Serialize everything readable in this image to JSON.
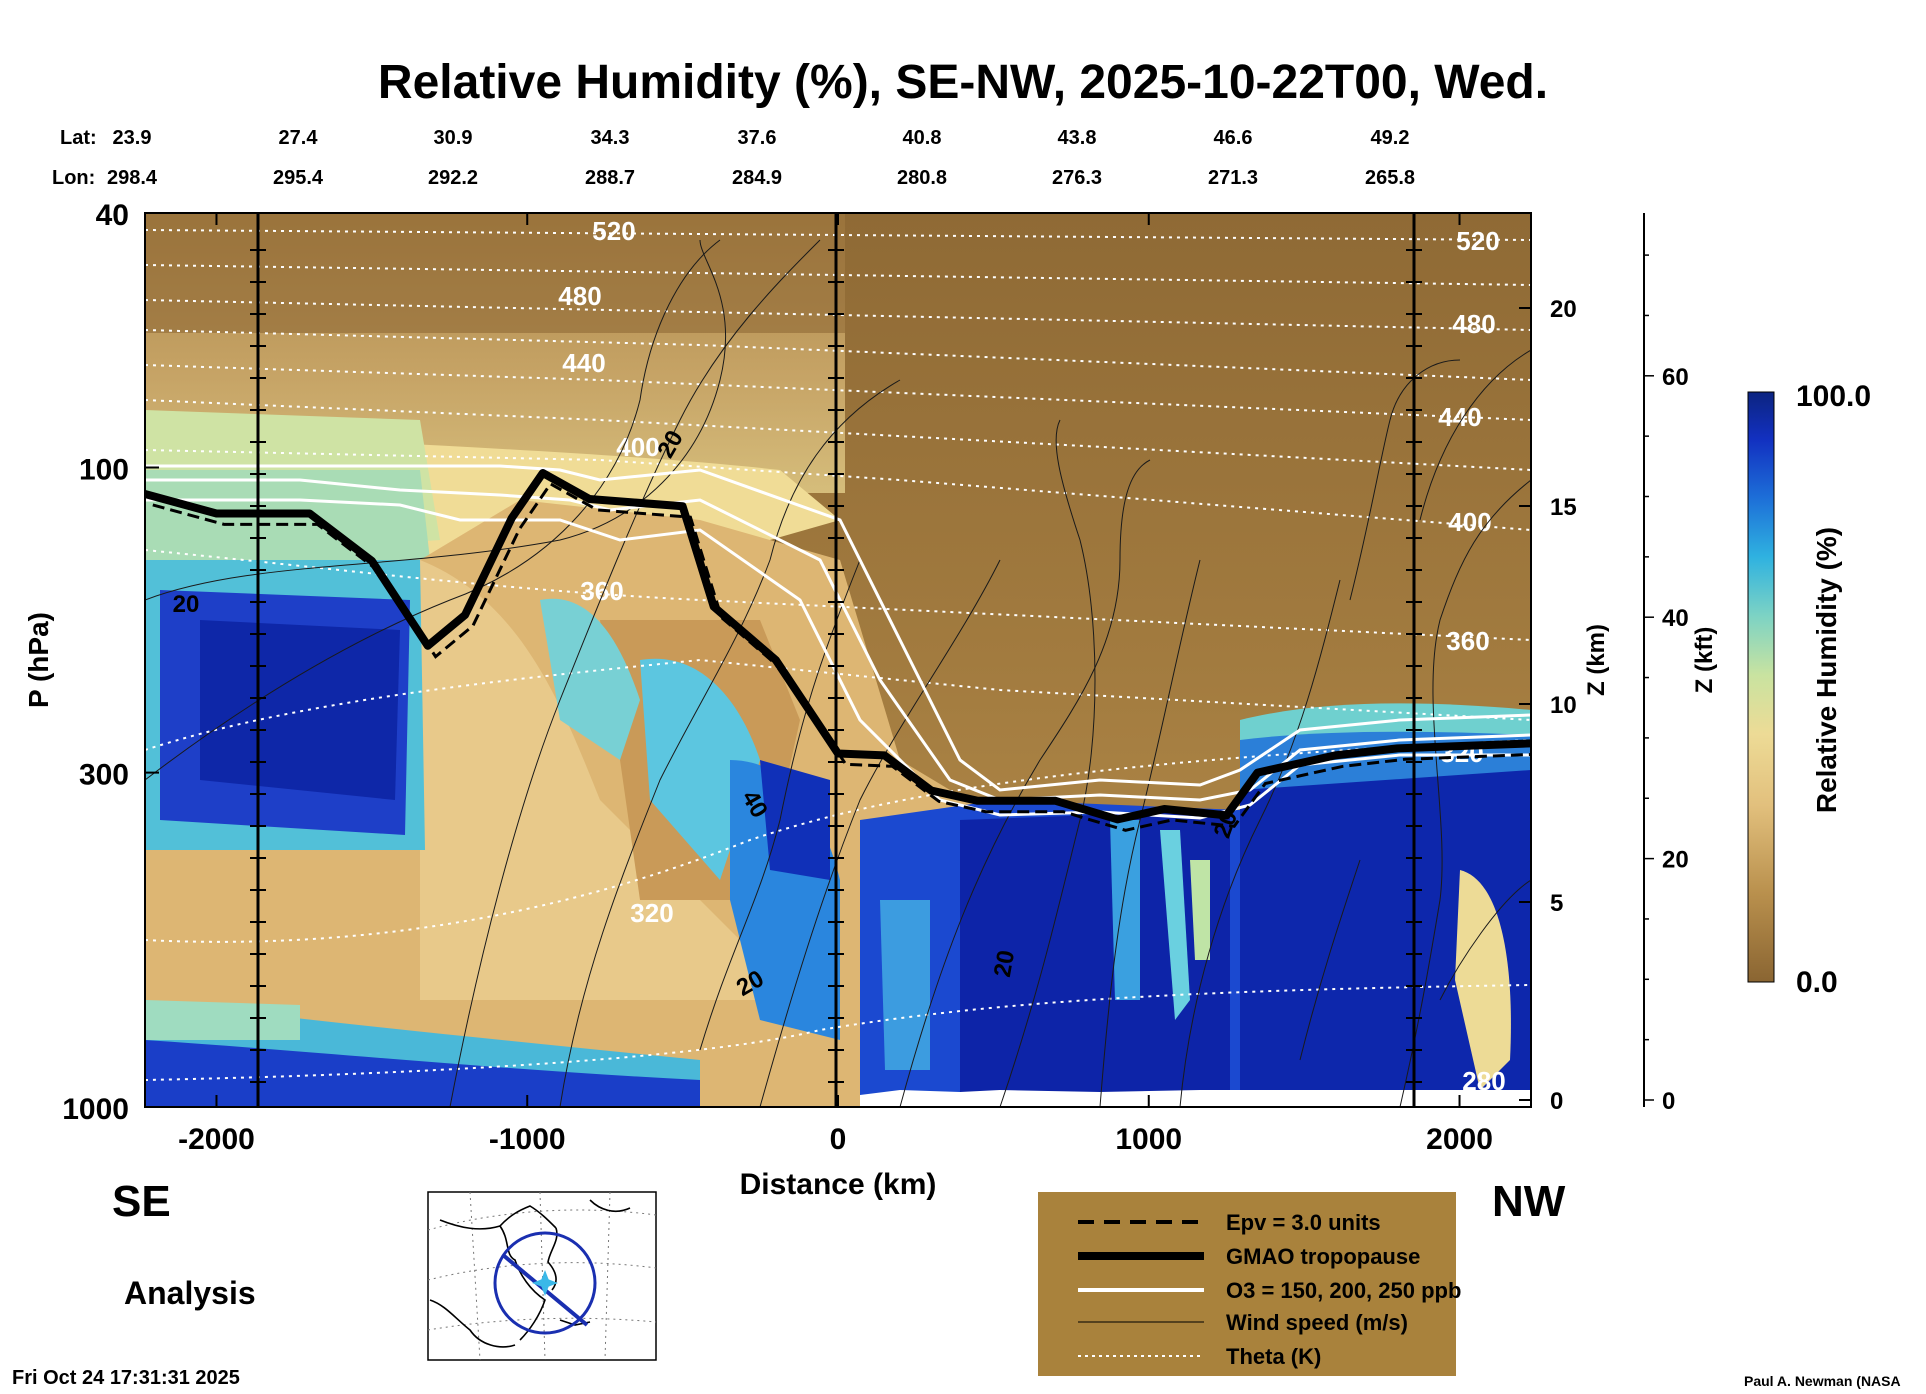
{
  "chart_data": {
    "type": "heatmap",
    "title": "Relative Humidity (%), SE-NW, 2025-10-22T00, Wed.",
    "xlabel": "Distance (km)",
    "ylabel": "P (hPa)",
    "right_label_km": "Z (km)",
    "right_label_kft": "Z (kft)",
    "x_range": [
      -2230,
      2230
    ],
    "y_range_hpa": [
      40,
      1000
    ],
    "x_ticks": [
      "-2000",
      "-1000",
      "0",
      "1000",
      "2000"
    ],
    "x_tick_values": [
      -2000,
      -1000,
      0,
      1000,
      2000
    ],
    "y_ticks": [
      "40",
      "100",
      "300",
      "1000"
    ],
    "y_tick_values": [
      40,
      100,
      300,
      1000
    ],
    "z_km_ticks": [
      "0",
      "5",
      "10",
      "15",
      "20"
    ],
    "z_km_values": [
      0,
      5,
      10,
      15,
      20
    ],
    "z_kft_ticks": [
      "0",
      "20",
      "40",
      "60"
    ],
    "z_kft_values": [
      0,
      20,
      40,
      60
    ],
    "lat_label": "Lat:",
    "lon_label": "Lon:",
    "lat": [
      "23.9",
      "27.4",
      "30.9",
      "34.3",
      "37.6",
      "40.8",
      "43.8",
      "46.6",
      "49.2"
    ],
    "lon": [
      "298.4",
      "295.4",
      "292.2",
      "288.7",
      "284.9",
      "280.8",
      "276.3",
      "271.3",
      "265.8"
    ],
    "theta_labels": [
      "520",
      "480",
      "440",
      "400",
      "360",
      "320",
      "280",
      "520",
      "480",
      "440",
      "400",
      "360",
      "320"
    ],
    "theta_levels_k": [
      280,
      320,
      360,
      400,
      440,
      480,
      520
    ],
    "wind_labels": [
      "20",
      "20",
      "40",
      "20",
      "20",
      "20"
    ],
    "colorbar": {
      "label": "Relative Humidity (%)",
      "min_label": "0.0",
      "max_label": "100.0",
      "min": 0,
      "max": 100
    },
    "tropopause_pressure_hpa": [
      [
        -2230,
        110
      ],
      [
        -2000,
        118
      ],
      [
        -1700,
        118
      ],
      [
        -1500,
        140
      ],
      [
        -1320,
        190
      ],
      [
        -1200,
        170
      ],
      [
        -1050,
        120
      ],
      [
        -950,
        102
      ],
      [
        -800,
        112
      ],
      [
        -500,
        115
      ],
      [
        -400,
        165
      ],
      [
        -200,
        200
      ],
      [
        0,
        280
      ],
      [
        150,
        282
      ],
      [
        300,
        320
      ],
      [
        450,
        332
      ],
      [
        700,
        332
      ],
      [
        900,
        355
      ],
      [
        1050,
        342
      ],
      [
        1250,
        350
      ],
      [
        1350,
        300
      ],
      [
        1600,
        282
      ],
      [
        1800,
        275
      ],
      [
        2230,
        270
      ]
    ]
  },
  "legend": {
    "items": [
      "Epv = 3.0 units",
      "GMAO tropopause",
      "O3 = 150, 200, 250 ppb",
      "Wind speed (m/s)",
      "Theta (K)"
    ]
  },
  "labels": {
    "left_direction": "SE",
    "right_direction": "NW",
    "analysis": "Analysis",
    "timestamp": "Fri Oct 24 17:31:31 2025",
    "credit": "Paul A. Newman (NASA"
  },
  "colors": {
    "background": "#ffffff",
    "legend_bg": "#a9823c",
    "dry": "#8a6532",
    "moist": "#0a1f9e"
  }
}
